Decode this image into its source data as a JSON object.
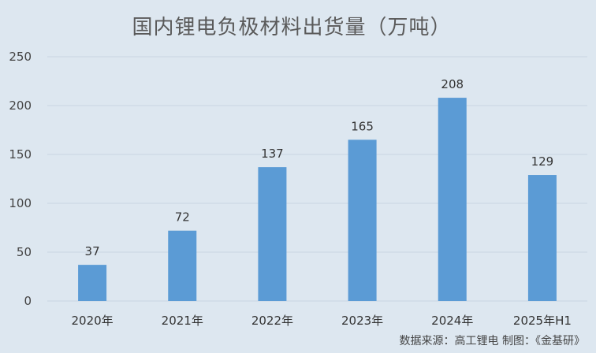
{
  "chart_data": {
    "type": "bar",
    "title": "国内锂电负极材料出货量（万吨）",
    "categories": [
      "2020年",
      "2021年",
      "2022年",
      "2023年",
      "2024年",
      "2025年H1"
    ],
    "values": [
      37,
      72,
      137,
      165,
      208,
      129
    ],
    "data_labels": [
      "37",
      "72",
      "137",
      "165",
      "208",
      "129"
    ],
    "ylim": [
      0,
      250
    ],
    "yticks": [
      0,
      50,
      100,
      150,
      200,
      250
    ],
    "ytick_labels": [
      "0",
      "50",
      "100",
      "150",
      "200",
      "250"
    ],
    "grid": true,
    "xlabel": "",
    "ylabel": "",
    "bar_color": "#5b9bd5",
    "grid_color": "#c9d6e2",
    "background_color": "#dde7f0"
  },
  "source_note": "数据来源：高工锂电  制图：《金基研》"
}
